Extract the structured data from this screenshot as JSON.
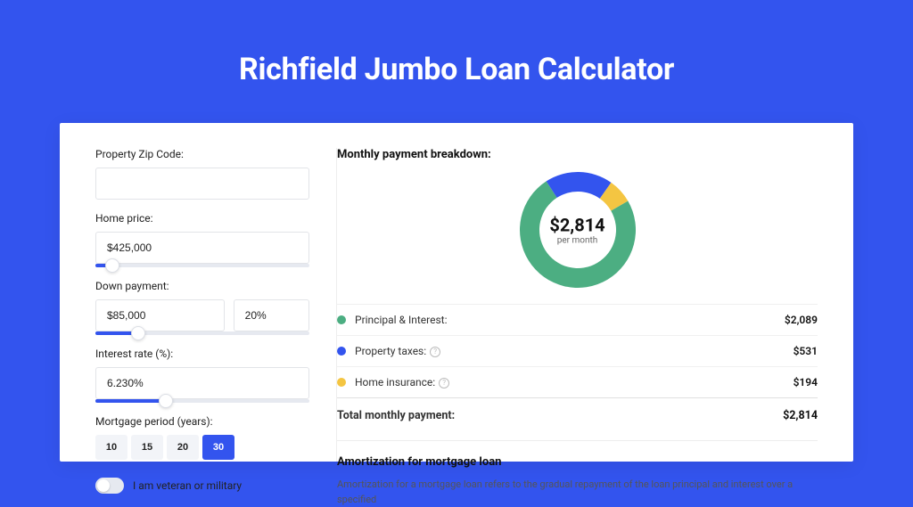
{
  "page": {
    "title": "Richfield Jumbo Loan Calculator",
    "background_color": "#3354ee",
    "card_bg": "#ffffff"
  },
  "form": {
    "zip_label": "Property Zip Code:",
    "zip_value": "",
    "home_price_label": "Home price:",
    "home_price_value": "$425,000",
    "home_price_slider_pct": 8,
    "down_payment_label": "Down payment:",
    "down_payment_value": "$85,000",
    "down_payment_pct": "20%",
    "down_payment_slider_pct": 20,
    "interest_label": "Interest rate (%):",
    "interest_value": "6.230%",
    "interest_slider_pct": 33,
    "period_label": "Mortgage period (years):",
    "periods": [
      "10",
      "15",
      "20",
      "30"
    ],
    "period_selected": "30",
    "veteran_label": "I am veteran or military"
  },
  "breakdown": {
    "title": "Monthly payment breakdown:",
    "donut": {
      "type": "donut",
      "size": 130,
      "thickness": 22,
      "center_value": "$2,814",
      "center_sub": "per month",
      "slices": [
        {
          "label": "principal_interest",
          "value": 2089,
          "percent": 74.2,
          "color": "#4cae82"
        },
        {
          "label": "property_taxes",
          "value": 531,
          "percent": 18.9,
          "color": "#3354ee"
        },
        {
          "label": "home_insurance",
          "value": 194,
          "percent": 6.9,
          "color": "#f4c542"
        }
      ],
      "start_angle_deg": -30
    },
    "rows": [
      {
        "color": "#4cae82",
        "label": "Principal & Interest:",
        "value": "$2,089",
        "info": false
      },
      {
        "color": "#3354ee",
        "label": "Property taxes:",
        "value": "$531",
        "info": true
      },
      {
        "color": "#f4c542",
        "label": "Home insurance:",
        "value": "$194",
        "info": true
      }
    ],
    "total_label": "Total monthly payment:",
    "total_value": "$2,814"
  },
  "amortization": {
    "title": "Amortization for mortgage loan",
    "text": "Amortization for a mortgage loan refers to the gradual repayment of the loan principal and interest over a specified"
  }
}
